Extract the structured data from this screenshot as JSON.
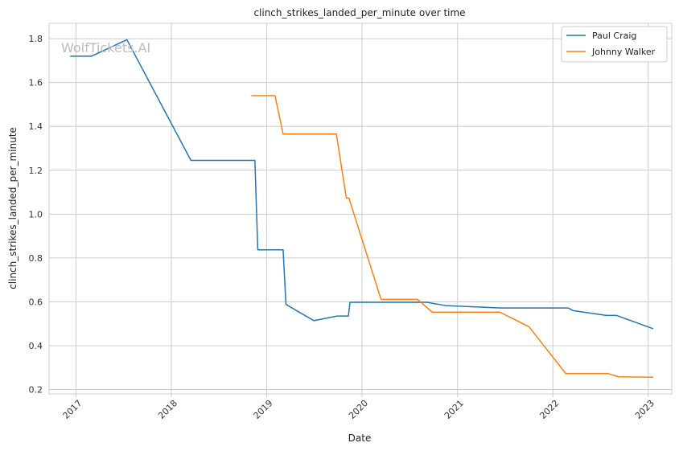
{
  "chart_data": {
    "type": "line",
    "title": "clinch_strikes_landed_per_minute over time",
    "xlabel": "Date",
    "ylabel": "clinch_strikes_landed_per_minute",
    "watermark": "WolfTickets.AI",
    "x_ticks": [
      "2017",
      "2018",
      "2019",
      "2020",
      "2021",
      "2022",
      "2023"
    ],
    "y_ticks": [
      "0.2",
      "0.4",
      "0.6",
      "0.8",
      "1.0",
      "1.2",
      "1.4",
      "1.6",
      "1.8"
    ],
    "xlim": [
      "2016-09-20",
      "2023-04-01"
    ],
    "ylim": [
      0.18,
      1.87
    ],
    "grid": true,
    "legend_position": "top-right",
    "series": [
      {
        "name": "Paul Craig",
        "color": "#1f77b4",
        "points": [
          [
            "2016-12-10",
            1.72
          ],
          [
            "2017-03-01",
            1.72
          ],
          [
            "2017-07-15",
            1.795
          ],
          [
            "2018-03-17",
            1.245
          ],
          [
            "2018-11-17",
            1.245
          ],
          [
            "2018-11-28",
            0.837
          ],
          [
            "2019-03-05",
            0.837
          ],
          [
            "2019-03-16",
            0.588
          ],
          [
            "2019-07-01",
            0.514
          ],
          [
            "2019-09-28",
            0.535
          ],
          [
            "2019-11-10",
            0.535
          ],
          [
            "2019-11-16",
            0.598
          ],
          [
            "2020-09-05",
            0.598
          ],
          [
            "2020-11-15",
            0.583
          ],
          [
            "2021-06-15",
            0.572
          ],
          [
            "2022-03-01",
            0.572
          ],
          [
            "2022-03-19",
            0.56
          ],
          [
            "2022-07-25",
            0.538
          ],
          [
            "2022-09-01",
            0.538
          ],
          [
            "2023-01-20",
            0.477
          ]
        ]
      },
      {
        "name": "Johnny Walker",
        "color": "#ff7f0e",
        "points": [
          [
            "2018-11-03",
            1.54
          ],
          [
            "2019-02-02",
            1.54
          ],
          [
            "2019-03-05",
            1.365
          ],
          [
            "2019-09-25",
            1.365
          ],
          [
            "2019-11-02",
            1.073
          ],
          [
            "2019-11-12",
            1.073
          ],
          [
            "2020-03-14",
            0.611
          ],
          [
            "2020-08-01",
            0.611
          ],
          [
            "2020-09-26",
            0.553
          ],
          [
            "2021-06-12",
            0.553
          ],
          [
            "2021-10-02",
            0.486
          ],
          [
            "2022-02-19",
            0.273
          ],
          [
            "2022-07-30",
            0.273
          ],
          [
            "2022-09-10",
            0.258
          ],
          [
            "2023-01-20",
            0.256
          ]
        ]
      }
    ]
  }
}
